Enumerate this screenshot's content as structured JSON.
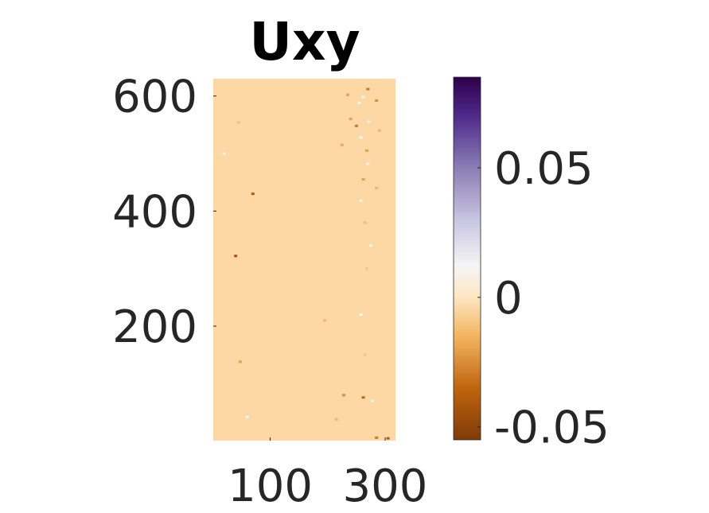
{
  "chart_data": {
    "type": "heatmap",
    "title": "Uxy",
    "xlabel": "",
    "ylabel": "",
    "xlim": [
      1,
      318
    ],
    "ylim": [
      1,
      630
    ],
    "x_ticks": [
      100,
      300
    ],
    "y_ticks": [
      200,
      400,
      600
    ],
    "colorbar": {
      "limits": [
        -0.055,
        0.085
      ],
      "ticks": [
        -0.05,
        0,
        0.05
      ],
      "tick_labels": [
        "-0.05",
        "0",
        "0.05"
      ],
      "colormap": "purple-orange diverging",
      "stops": [
        {
          "value": -0.055,
          "color": "#7f3b08"
        },
        {
          "value": -0.035,
          "color": "#c0650f"
        },
        {
          "value": -0.015,
          "color": "#f3b560"
        },
        {
          "value": 0.0,
          "color": "#fde6c2"
        },
        {
          "value": 0.012,
          "color": "#f5f5f5"
        },
        {
          "value": 0.03,
          "color": "#c8c5e1"
        },
        {
          "value": 0.05,
          "color": "#8a7db5"
        },
        {
          "value": 0.07,
          "color": "#4f2a8a"
        },
        {
          "value": 0.085,
          "color": "#2d004b"
        }
      ]
    },
    "field": {
      "background_value": 0.004,
      "background_color": "#fdd8a4",
      "speckles": [
        {
          "x": 270,
          "y": 612,
          "value": -0.03
        },
        {
          "x": 235,
          "y": 602,
          "value": -0.02
        },
        {
          "x": 262,
          "y": 598,
          "value": 0.012
        },
        {
          "x": 285,
          "y": 592,
          "value": -0.025
        },
        {
          "x": 255,
          "y": 588,
          "value": 0.01
        },
        {
          "x": 240,
          "y": 560,
          "value": -0.02
        },
        {
          "x": 272,
          "y": 556,
          "value": 0.014
        },
        {
          "x": 250,
          "y": 548,
          "value": -0.03
        },
        {
          "x": 290,
          "y": 540,
          "value": -0.015
        },
        {
          "x": 258,
          "y": 528,
          "value": 0.012
        },
        {
          "x": 225,
          "y": 515,
          "value": -0.018
        },
        {
          "x": 268,
          "y": 505,
          "value": -0.02
        },
        {
          "x": 20,
          "y": 500,
          "value": 0.014
        },
        {
          "x": 45,
          "y": 554,
          "value": -0.012
        },
        {
          "x": 270,
          "y": 482,
          "value": 0.01
        },
        {
          "x": 262,
          "y": 455,
          "value": -0.02
        },
        {
          "x": 70,
          "y": 430,
          "value": -0.04
        },
        {
          "x": 285,
          "y": 440,
          "value": -0.015
        },
        {
          "x": 258,
          "y": 418,
          "value": 0.01
        },
        {
          "x": 265,
          "y": 380,
          "value": -0.012
        },
        {
          "x": 40,
          "y": 322,
          "value": -0.045
        },
        {
          "x": 275,
          "y": 340,
          "value": 0.01
        },
        {
          "x": 268,
          "y": 300,
          "value": -0.01
        },
        {
          "x": 258,
          "y": 220,
          "value": 0.012
        },
        {
          "x": 195,
          "y": 210,
          "value": -0.015
        },
        {
          "x": 48,
          "y": 138,
          "value": -0.02
        },
        {
          "x": 265,
          "y": 150,
          "value": -0.01
        },
        {
          "x": 228,
          "y": 80,
          "value": -0.025
        },
        {
          "x": 262,
          "y": 76,
          "value": -0.035
        },
        {
          "x": 278,
          "y": 70,
          "value": 0.01
        },
        {
          "x": 215,
          "y": 38,
          "value": -0.015
        },
        {
          "x": 305,
          "y": 5,
          "value": -0.04
        },
        {
          "x": 285,
          "y": 6,
          "value": -0.03
        },
        {
          "x": 60,
          "y": 42,
          "value": 0.012
        }
      ]
    }
  }
}
